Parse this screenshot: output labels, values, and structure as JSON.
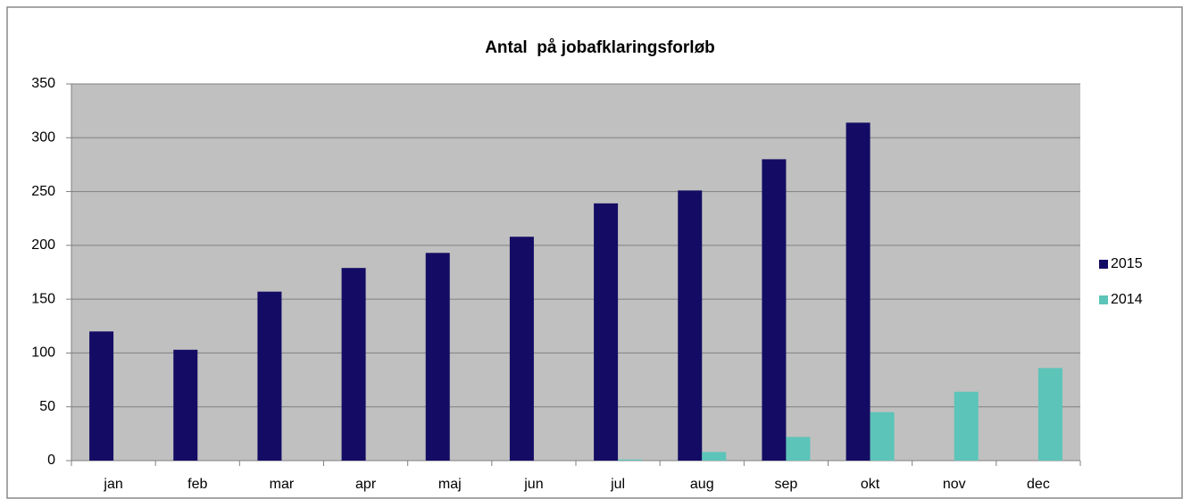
{
  "chart_data": {
    "type": "bar",
    "title": "Antal  på jobafklaringsforløb",
    "categories": [
      "jan",
      "feb",
      "mar",
      "apr",
      "maj",
      "jun",
      "jul",
      "aug",
      "sep",
      "okt",
      "nov",
      "dec"
    ],
    "series": [
      {
        "name": "2015",
        "color": "#140c64",
        "values": [
          120,
          103,
          157,
          179,
          193,
          208,
          239,
          251,
          280,
          314,
          null,
          null
        ]
      },
      {
        "name": "2014",
        "color": "#5cc4b8",
        "values": [
          null,
          null,
          null,
          null,
          null,
          null,
          1,
          8,
          22,
          45,
          64,
          86
        ]
      }
    ],
    "ylim": [
      0,
      350
    ],
    "yticks": [
      0,
      50,
      100,
      150,
      200,
      250,
      300,
      350
    ],
    "grid": true,
    "legend": "right"
  }
}
